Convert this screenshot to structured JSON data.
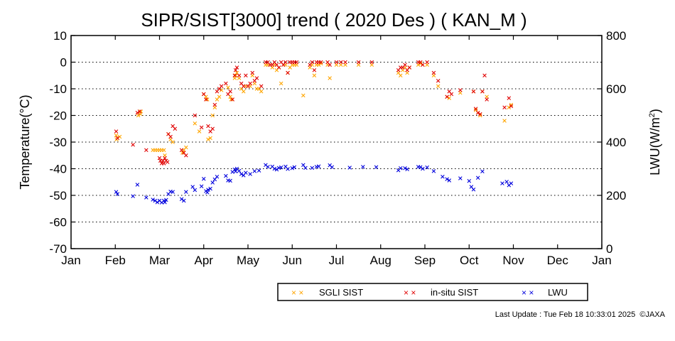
{
  "chart_data": {
    "type": "scatter",
    "title": "SIPR/SIST[3000] trend ( 2020 Des ) ( KAN_M )",
    "ylabel": "Temperature(°C)",
    "y2label_base": "LWU(W/m",
    "y2label_exp": "2",
    "y2label_close": ")",
    "ylim": [
      -70,
      10
    ],
    "y2lim": [
      0,
      800
    ],
    "yticks": [
      "10",
      "0",
      "-10",
      "-20",
      "-30",
      "-40",
      "-50",
      "-60",
      "-70"
    ],
    "y2ticks": [
      "800",
      "600",
      "400",
      "200",
      "0"
    ],
    "xlim": [
      0,
      12
    ],
    "xticks": [
      "Jan",
      "Feb",
      "Mar",
      "Apr",
      "May",
      "Jun",
      "Jul",
      "Aug",
      "Sep",
      "Oct",
      "Nov",
      "Dec",
      "Jan"
    ],
    "grid_y": [
      0,
      -10,
      -20,
      -30,
      -40,
      -50,
      -60
    ],
    "x_unit": "month (0 = 1 Jan, 12 = 1 Jan next year)",
    "marker": "x",
    "series": [
      {
        "name": "SGLI SIST",
        "color": "#ffa500",
        "axis": "left",
        "points": [
          [
            1.02,
            -27.5
          ],
          [
            1.03,
            -29
          ],
          [
            1.1,
            -28
          ],
          [
            1.52,
            -20
          ],
          [
            1.57,
            -19.5
          ],
          [
            1.58,
            -18.5
          ],
          [
            1.85,
            -33
          ],
          [
            1.9,
            -33
          ],
          [
            1.95,
            -33
          ],
          [
            2.0,
            -33
          ],
          [
            2.05,
            -33
          ],
          [
            2.1,
            -33
          ],
          [
            2.12,
            -35
          ],
          [
            2.2,
            -27
          ],
          [
            2.25,
            -29
          ],
          [
            2.3,
            -30
          ],
          [
            2.52,
            -34
          ],
          [
            2.55,
            -33
          ],
          [
            2.6,
            -32
          ],
          [
            2.8,
            -23
          ],
          [
            2.9,
            -26
          ],
          [
            3.0,
            -12
          ],
          [
            3.05,
            -13
          ],
          [
            3.08,
            -14
          ],
          [
            3.1,
            -29
          ],
          [
            3.15,
            -28.5
          ],
          [
            3.2,
            -20
          ],
          [
            3.25,
            -17
          ],
          [
            3.3,
            -14
          ],
          [
            3.35,
            -13
          ],
          [
            3.4,
            -10.5
          ],
          [
            3.55,
            -9.5
          ],
          [
            3.6,
            -13
          ],
          [
            3.62,
            -14
          ],
          [
            3.7,
            -6
          ],
          [
            3.72,
            -5
          ],
          [
            3.75,
            -4
          ],
          [
            3.8,
            -6
          ],
          [
            3.85,
            -10
          ],
          [
            3.9,
            -11
          ],
          [
            3.95,
            -9
          ],
          [
            4.05,
            -9
          ],
          [
            4.1,
            -5
          ],
          [
            4.15,
            -8
          ],
          [
            4.2,
            -10
          ],
          [
            4.25,
            -10
          ],
          [
            4.3,
            -11
          ],
          [
            4.4,
            -1
          ],
          [
            4.45,
            -1
          ],
          [
            4.5,
            -1
          ],
          [
            4.55,
            -2
          ],
          [
            4.6,
            -1
          ],
          [
            4.65,
            -3
          ],
          [
            4.7,
            -2
          ],
          [
            4.75,
            -8
          ],
          [
            4.8,
            -1
          ],
          [
            4.85,
            -1
          ],
          [
            4.9,
            -4
          ],
          [
            4.95,
            -2
          ],
          [
            5.0,
            -1
          ],
          [
            5.05,
            -1
          ],
          [
            5.1,
            -1
          ],
          [
            5.25,
            -12.5
          ],
          [
            5.4,
            -2
          ],
          [
            5.45,
            -1
          ],
          [
            5.5,
            -5
          ],
          [
            5.55,
            -1
          ],
          [
            5.6,
            -1
          ],
          [
            5.65,
            -0.5
          ],
          [
            5.8,
            -1
          ],
          [
            5.85,
            -6
          ],
          [
            6.0,
            -1
          ],
          [
            6.1,
            -1
          ],
          [
            6.2,
            -1
          ],
          [
            6.5,
            -1
          ],
          [
            6.8,
            -1
          ],
          [
            7.4,
            -4
          ],
          [
            7.45,
            -5
          ],
          [
            7.5,
            -3
          ],
          [
            7.55,
            -2
          ],
          [
            7.6,
            -4
          ],
          [
            7.65,
            -2
          ],
          [
            7.85,
            -1
          ],
          [
            7.9,
            -0.5
          ],
          [
            7.95,
            -1
          ],
          [
            8.05,
            -1
          ],
          [
            8.2,
            -5
          ],
          [
            8.3,
            -9
          ],
          [
            8.5,
            -13
          ],
          [
            8.55,
            -13.5
          ],
          [
            8.8,
            -11.5
          ],
          [
            9.1,
            -11
          ],
          [
            9.15,
            -18
          ],
          [
            9.2,
            -19
          ],
          [
            9.25,
            -20
          ],
          [
            9.3,
            -11
          ],
          [
            9.4,
            -13
          ],
          [
            9.8,
            -22
          ],
          [
            9.9,
            -17
          ],
          [
            9.95,
            -16
          ]
        ]
      },
      {
        "name": "in-situ SIST",
        "color": "#e00000",
        "axis": "left",
        "points": [
          [
            1.02,
            -26
          ],
          [
            1.05,
            -28.5
          ],
          [
            1.4,
            -31
          ],
          [
            1.5,
            -19
          ],
          [
            1.55,
            -18.5
          ],
          [
            1.7,
            -33
          ],
          [
            2.0,
            -36
          ],
          [
            2.02,
            -37
          ],
          [
            2.05,
            -38
          ],
          [
            2.08,
            -37
          ],
          [
            2.1,
            -38
          ],
          [
            2.12,
            -36
          ],
          [
            2.15,
            -37
          ],
          [
            2.18,
            -37.5
          ],
          [
            2.2,
            -27
          ],
          [
            2.25,
            -28
          ],
          [
            2.3,
            -24
          ],
          [
            2.35,
            -25
          ],
          [
            2.5,
            -33
          ],
          [
            2.55,
            -34
          ],
          [
            2.6,
            -35
          ],
          [
            2.8,
            -20
          ],
          [
            2.95,
            -24.5
          ],
          [
            3.0,
            -12
          ],
          [
            3.05,
            -14
          ],
          [
            3.1,
            -24
          ],
          [
            3.15,
            -26
          ],
          [
            3.2,
            -25
          ],
          [
            3.25,
            -16
          ],
          [
            3.3,
            -11
          ],
          [
            3.35,
            -10
          ],
          [
            3.4,
            -9
          ],
          [
            3.5,
            -8
          ],
          [
            3.55,
            -12
          ],
          [
            3.6,
            -11
          ],
          [
            3.65,
            -14
          ],
          [
            3.7,
            -5
          ],
          [
            3.72,
            -3
          ],
          [
            3.75,
            -2
          ],
          [
            3.8,
            -5
          ],
          [
            3.85,
            -8
          ],
          [
            3.9,
            -9
          ],
          [
            3.95,
            -5
          ],
          [
            4.0,
            -9
          ],
          [
            4.05,
            -8
          ],
          [
            4.1,
            -4
          ],
          [
            4.15,
            -7
          ],
          [
            4.2,
            -6
          ],
          [
            4.3,
            -9
          ],
          [
            4.4,
            0
          ],
          [
            4.45,
            0
          ],
          [
            4.5,
            -1
          ],
          [
            4.55,
            -1
          ],
          [
            4.6,
            0
          ],
          [
            4.65,
            -1
          ],
          [
            4.7,
            -2
          ],
          [
            4.75,
            0
          ],
          [
            4.8,
            -1
          ],
          [
            4.85,
            0
          ],
          [
            4.9,
            -4
          ],
          [
            4.95,
            0
          ],
          [
            5.0,
            0
          ],
          [
            5.05,
            0
          ],
          [
            5.1,
            0
          ],
          [
            5.4,
            -1
          ],
          [
            5.45,
            0
          ],
          [
            5.5,
            -3
          ],
          [
            5.55,
            0
          ],
          [
            5.6,
            0
          ],
          [
            5.65,
            0
          ],
          [
            5.8,
            0
          ],
          [
            5.85,
            -1
          ],
          [
            6.0,
            0
          ],
          [
            6.1,
            0
          ],
          [
            6.2,
            0
          ],
          [
            6.5,
            0
          ],
          [
            6.8,
            0
          ],
          [
            7.4,
            -3
          ],
          [
            7.45,
            -2
          ],
          [
            7.5,
            -2
          ],
          [
            7.55,
            -1
          ],
          [
            7.6,
            -3
          ],
          [
            7.65,
            -2
          ],
          [
            7.85,
            0
          ],
          [
            7.9,
            0
          ],
          [
            7.95,
            -1
          ],
          [
            8.05,
            0
          ],
          [
            8.2,
            -4
          ],
          [
            8.3,
            -7
          ],
          [
            8.5,
            -13
          ],
          [
            8.55,
            -11
          ],
          [
            8.6,
            -12
          ],
          [
            8.8,
            -10.5
          ],
          [
            9.1,
            -11
          ],
          [
            9.15,
            -17.5
          ],
          [
            9.2,
            -19
          ],
          [
            9.25,
            -19.5
          ],
          [
            9.3,
            -11
          ],
          [
            9.35,
            -5
          ],
          [
            9.4,
            -14
          ],
          [
            9.8,
            -17
          ],
          [
            9.9,
            -13.5
          ],
          [
            9.95,
            -16.5
          ]
        ]
      },
      {
        "name": "LWU",
        "color": "#0000dd",
        "axis": "right",
        "points": [
          [
            1.02,
            213
          ],
          [
            1.05,
            205
          ],
          [
            1.4,
            197
          ],
          [
            1.5,
            240
          ],
          [
            1.7,
            192
          ],
          [
            1.85,
            184
          ],
          [
            1.9,
            180
          ],
          [
            1.95,
            174
          ],
          [
            2.0,
            180
          ],
          [
            2.05,
            173
          ],
          [
            2.1,
            180
          ],
          [
            2.12,
            174
          ],
          [
            2.15,
            183
          ],
          [
            2.2,
            205
          ],
          [
            2.25,
            214
          ],
          [
            2.3,
            213
          ],
          [
            2.5,
            186
          ],
          [
            2.55,
            180
          ],
          [
            2.6,
            213
          ],
          [
            2.75,
            232
          ],
          [
            2.8,
            220
          ],
          [
            2.95,
            234
          ],
          [
            3.0,
            262
          ],
          [
            3.05,
            216
          ],
          [
            3.08,
            211
          ],
          [
            3.1,
            221
          ],
          [
            3.15,
            225
          ],
          [
            3.2,
            248
          ],
          [
            3.25,
            260
          ],
          [
            3.3,
            270
          ],
          [
            3.5,
            273
          ],
          [
            3.55,
            256
          ],
          [
            3.6,
            255
          ],
          [
            3.65,
            288
          ],
          [
            3.7,
            297
          ],
          [
            3.72,
            290
          ],
          [
            3.75,
            300
          ],
          [
            3.8,
            292
          ],
          [
            3.85,
            280
          ],
          [
            3.9,
            275
          ],
          [
            3.95,
            285
          ],
          [
            4.05,
            280
          ],
          [
            4.15,
            291
          ],
          [
            4.25,
            293
          ],
          [
            4.4,
            314
          ],
          [
            4.45,
            307
          ],
          [
            4.55,
            308
          ],
          [
            4.6,
            300
          ],
          [
            4.65,
            297
          ],
          [
            4.7,
            303
          ],
          [
            4.75,
            305
          ],
          [
            4.85,
            308
          ],
          [
            4.9,
            299
          ],
          [
            5.0,
            302
          ],
          [
            5.05,
            306
          ],
          [
            5.25,
            314
          ],
          [
            5.3,
            303
          ],
          [
            5.45,
            303
          ],
          [
            5.55,
            307
          ],
          [
            5.6,
            309
          ],
          [
            5.85,
            313
          ],
          [
            5.9,
            306
          ],
          [
            6.3,
            304
          ],
          [
            6.6,
            307
          ],
          [
            6.9,
            306
          ],
          [
            7.4,
            294
          ],
          [
            7.45,
            302
          ],
          [
            7.55,
            302
          ],
          [
            7.6,
            298
          ],
          [
            7.85,
            307
          ],
          [
            7.9,
            306
          ],
          [
            7.95,
            300
          ],
          [
            8.05,
            305
          ],
          [
            8.2,
            291
          ],
          [
            8.4,
            270
          ],
          [
            8.5,
            261
          ],
          [
            8.55,
            256
          ],
          [
            8.8,
            264
          ],
          [
            9.0,
            254
          ],
          [
            9.05,
            232
          ],
          [
            9.1,
            222
          ],
          [
            9.2,
            266
          ],
          [
            9.3,
            290
          ],
          [
            9.75,
            245
          ],
          [
            9.85,
            251
          ],
          [
            9.9,
            238
          ],
          [
            9.95,
            245
          ]
        ]
      }
    ],
    "legend": {
      "placement": "bottom-right",
      "marker_text": "× ×",
      "items": [
        "SGLI SIST",
        "in-situ SIST",
        "LWU"
      ]
    }
  },
  "footer": {
    "text": "Last Update : Tue Feb 18 10:33:01 2025  ©JAXA"
  }
}
